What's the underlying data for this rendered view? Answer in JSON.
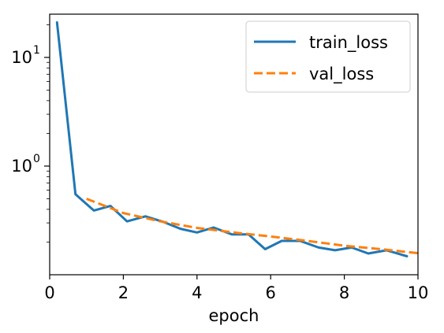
{
  "chart_data": {
    "type": "line",
    "xlabel": "epoch",
    "ylabel": "",
    "xlim": [
      0,
      10
    ],
    "ylim": [
      0.1,
      25
    ],
    "yscale": "log",
    "grid": false,
    "legend_placement": "top-right",
    "x_ticks": [
      0,
      2,
      4,
      6,
      8,
      10
    ],
    "y_ticks": [
      {
        "value": 1,
        "base": "10",
        "exp": "0"
      },
      {
        "value": 10,
        "base": "10",
        "exp": "1"
      }
    ],
    "series": [
      {
        "name": "train_loss",
        "color": "#1f77b4",
        "style": "solid",
        "x": [
          0.2,
          0.7,
          1.2,
          1.65,
          2.1,
          2.6,
          3.1,
          3.55,
          4.0,
          4.45,
          4.95,
          5.4,
          5.85,
          6.3,
          6.8,
          7.3,
          7.75,
          8.2,
          8.65,
          9.15,
          9.7
        ],
        "y": [
          21.0,
          0.55,
          0.39,
          0.43,
          0.31,
          0.345,
          0.305,
          0.265,
          0.245,
          0.272,
          0.235,
          0.235,
          0.172,
          0.205,
          0.205,
          0.178,
          0.168,
          0.178,
          0.157,
          0.168,
          0.148
        ]
      },
      {
        "name": "val_loss",
        "color": "#ff7f0e",
        "style": "dashed",
        "x": [
          1,
          2,
          3,
          4,
          5,
          6,
          7,
          8,
          9,
          10
        ],
        "y": [
          0.5,
          0.37,
          0.31,
          0.27,
          0.245,
          0.225,
          0.205,
          0.185,
          0.172,
          0.158
        ]
      }
    ]
  }
}
